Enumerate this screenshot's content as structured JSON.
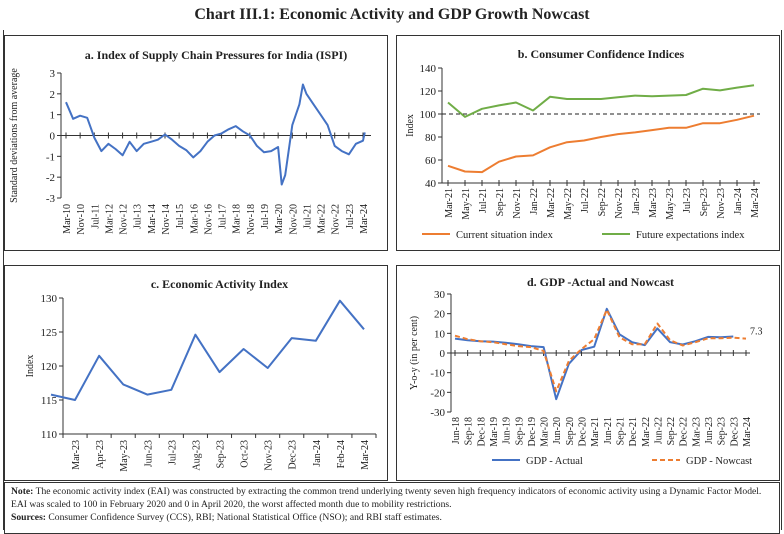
{
  "title": "Chart III.1: Economic Activity and GDP Growth Nowcast",
  "chart_data": [
    {
      "id": "a",
      "type": "line",
      "title": "a. Index of Supply Chain Pressures for India (ISPI)",
      "ylabel": "Standard deviations from average",
      "xlabel": "",
      "ylim": [
        -3,
        3
      ],
      "yticks": [
        3,
        2,
        1,
        0,
        -1,
        -2,
        -3
      ],
      "xtick_labels": [
        "Mar-10",
        "Nov-10",
        "Jul-11",
        "Mar-12",
        "Nov-12",
        "Jul-13",
        "Mar-14",
        "Nov-14",
        "Jul-15",
        "Mar-16",
        "Nov-16",
        "Jul-17",
        "Mar-18",
        "Nov-18",
        "Jul-19",
        "Mar-20",
        "Nov-20",
        "Jul-21",
        "Mar-22",
        "Nov-22",
        "Jul-23",
        "Mar-24"
      ],
      "series": [
        {
          "color": "#4472C4",
          "x": [
            "Mar-10",
            "Jul-10",
            "Nov-10",
            "Mar-11",
            "Jul-11",
            "Nov-11",
            "Mar-12",
            "Jul-12",
            "Nov-12",
            "Mar-13",
            "Jul-13",
            "Nov-13",
            "Mar-14",
            "Jul-14",
            "Nov-14",
            "Mar-15",
            "Jul-15",
            "Nov-15",
            "Mar-16",
            "Jul-16",
            "Nov-16",
            "Mar-17",
            "Jul-17",
            "Nov-17",
            "Mar-18",
            "Jul-18",
            "Nov-18",
            "Mar-19",
            "Jul-19",
            "Nov-19",
            "Mar-20",
            "May-20",
            "Jul-20",
            "Nov-20",
            "Mar-21",
            "May-21",
            "Jul-21",
            "Nov-21",
            "Mar-22",
            "Jul-22",
            "Nov-22",
            "Mar-23",
            "Jul-23",
            "Nov-23",
            "Mar-24",
            "Apr-24"
          ],
          "values": [
            1.6,
            0.8,
            0.95,
            0.85,
            -0.1,
            -0.75,
            -0.4,
            -0.65,
            -0.95,
            -0.3,
            -0.75,
            -0.4,
            -0.3,
            -0.2,
            0.05,
            -0.2,
            -0.5,
            -0.7,
            -1.05,
            -0.75,
            -0.3,
            0.0,
            0.1,
            0.3,
            0.45,
            0.2,
            0.0,
            -0.5,
            -0.8,
            -0.75,
            -0.55,
            -2.35,
            -1.9,
            0.5,
            1.5,
            2.45,
            2.0,
            1.5,
            1.0,
            0.5,
            -0.5,
            -0.75,
            -0.9,
            -0.4,
            -0.25,
            0.15
          ]
        }
      ]
    },
    {
      "id": "b",
      "type": "line",
      "title": "b. Consumer Confidence Indices",
      "ylabel": "Index",
      "ylim": [
        40,
        140
      ],
      "yticks": [
        140,
        120,
        100,
        80,
        60,
        40
      ],
      "reference_line": 100,
      "categories": [
        "Mar-21",
        "May-21",
        "Jul-21",
        "Sep-21",
        "Nov-21",
        "Jan-22",
        "Mar-22",
        "May-22",
        "Jul-22",
        "Sep-22",
        "Nov-22",
        "Jan-23",
        "Mar-23",
        "May-23",
        "Jul-23",
        "Sep-23",
        "Nov-23",
        "Jan-24",
        "Mar-24"
      ],
      "series": [
        {
          "name": "Current situation index",
          "color": "#ED7D31",
          "values": [
            55,
            50,
            49.5,
            58.5,
            63,
            64,
            71,
            75.5,
            77,
            80,
            82.5,
            84,
            86,
            88,
            88,
            92,
            92,
            95,
            98.5
          ]
        },
        {
          "name": "Future expectations index",
          "color": "#70AD47",
          "values": [
            110,
            97.5,
            104.5,
            107.5,
            110,
            103,
            115,
            113,
            113,
            113,
            114.5,
            116,
            115.5,
            116,
            116.5,
            122,
            120.5,
            123,
            125
          ]
        }
      ],
      "legend": "bottom"
    },
    {
      "id": "c",
      "type": "line",
      "title": "c. Economic Activity Index",
      "ylabel": "Index",
      "ylim": [
        110,
        130
      ],
      "yticks": [
        130,
        125,
        120,
        115,
        110
      ],
      "categories": [
        "",
        "Mar-23",
        "Apr-23",
        "May-23",
        "Jun-23",
        "Jul-23",
        "Aug-23",
        "Sep-23",
        "Oct-23",
        "Nov-23",
        "Dec-23",
        "Jan-24",
        "Feb-24",
        "Mar-24"
      ],
      "series": [
        {
          "color": "#4472C4",
          "values": [
            115.8,
            115.0,
            121.5,
            117.3,
            115.8,
            116.5,
            124.6,
            119.1,
            122.5,
            119.7,
            124.1,
            123.7,
            129.6,
            125.4
          ]
        }
      ]
    },
    {
      "id": "d",
      "type": "line",
      "title": "d. GDP -Actual and Nowcast",
      "ylabel": "Y-o-y (in per cent)",
      "ylim": [
        -30,
        30
      ],
      "yticks": [
        30,
        20,
        10,
        0,
        -10,
        -20,
        -30
      ],
      "categories": [
        "Jun-18",
        "Sep-18",
        "Dec-18",
        "Mar-19",
        "Jun-19",
        "Sep-19",
        "Dec-19",
        "Mar-20",
        "Jun-20",
        "Sep-20",
        "Dec-20",
        "Mar-21",
        "Jun-21",
        "Sep-21",
        "Dec-21",
        "Mar-22",
        "Jun-22",
        "Sep-22",
        "Dec-22",
        "Mar-23",
        "Jun-23",
        "Sep-23",
        "Dec-23",
        "Mar-24"
      ],
      "series": [
        {
          "name": "GDP - Actual",
          "color": "#4472C4",
          "dash": false,
          "values": [
            7.3,
            6.5,
            6.0,
            5.8,
            5.2,
            4.5,
            3.5,
            3.0,
            -23.5,
            -5.5,
            1.5,
            3.2,
            22.5,
            9.5,
            5.5,
            4.0,
            12.5,
            5.5,
            4.3,
            6.0,
            8.2,
            8.0,
            8.4,
            null
          ]
        },
        {
          "name": "GDP - Nowcast",
          "color": "#ED7D31",
          "dash": true,
          "values": [
            8.8,
            7.0,
            6.0,
            5.5,
            4.5,
            3.5,
            3.0,
            1.0,
            -19.5,
            -4.0,
            2.0,
            7.0,
            22.0,
            8.0,
            4.5,
            4.5,
            15.0,
            6.5,
            3.8,
            5.5,
            7.5,
            7.5,
            7.8,
            7.3
          ]
        }
      ],
      "annotation": "7.3",
      "legend": "bottom"
    }
  ],
  "note": {
    "note_label": "Note:",
    "note_text": " The economic activity index (EAI) was constructed by extracting the common trend underlying twenty seven high frequency indicators of economic activity using a Dynamic Factor Model. EAI was scaled to 100 in February 2020 and 0 in April 2020, the worst affected month due to mobility restrictions.",
    "sources_label": "Sources:",
    "sources_text": " Consumer Confidence Survey (CCS), RBI; National Statistical Office (NSO); and RBI staff estimates."
  }
}
